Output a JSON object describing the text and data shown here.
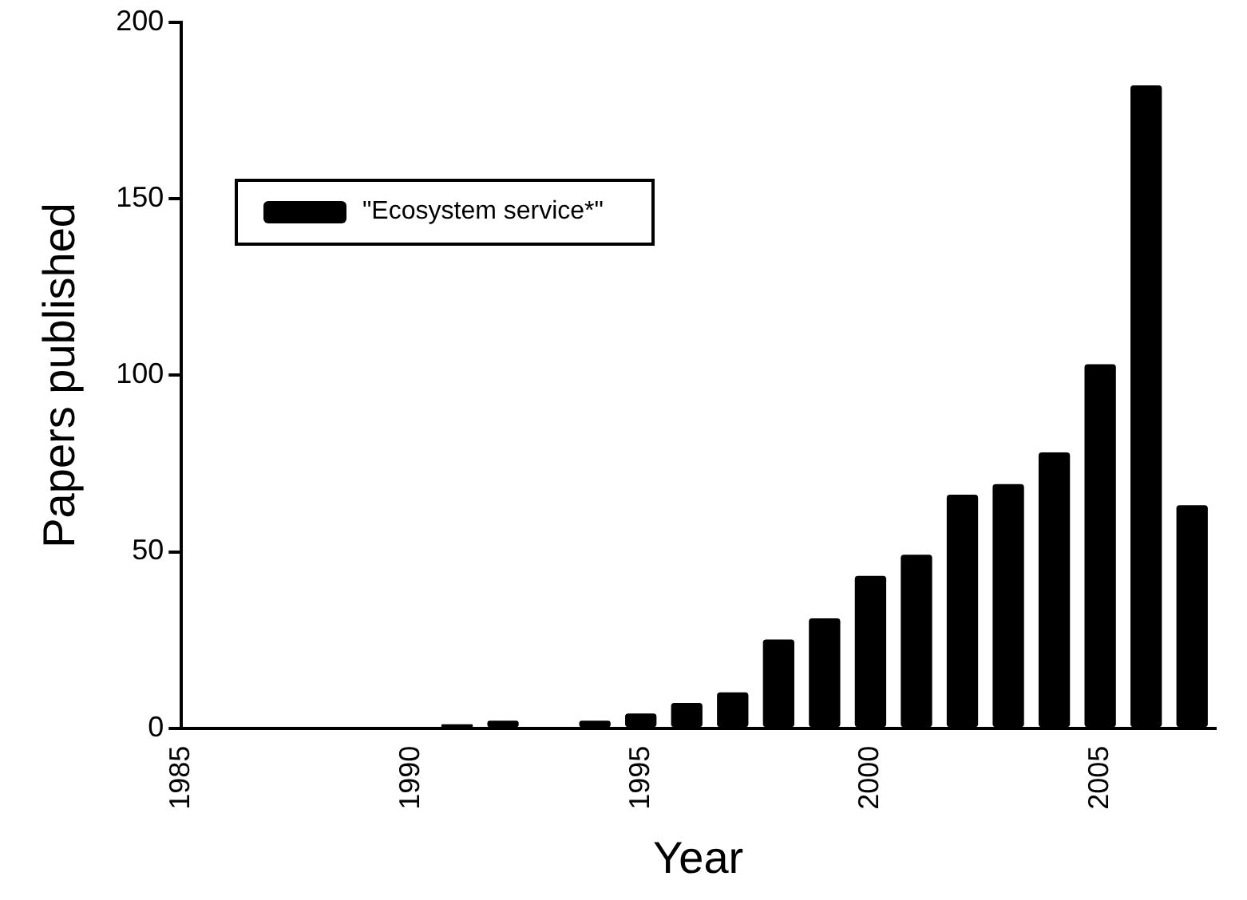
{
  "chart_data": {
    "type": "bar",
    "xlabel": "Year",
    "ylabel": "Papers published",
    "x": [
      1991,
      1992,
      1994,
      1995,
      1996,
      1997,
      1998,
      1999,
      2000,
      2001,
      2002,
      2003,
      2004,
      2005,
      2006,
      2007
    ],
    "series": [
      {
        "name": "\"Ecosystem service*\"",
        "color": "#000000",
        "values": [
          1,
          2,
          2,
          4,
          7,
          10,
          25,
          31,
          43,
          49,
          66,
          69,
          78,
          103,
          182,
          63
        ]
      }
    ],
    "xlim": [
      1985,
      2007.5
    ],
    "xticks": [
      1985,
      1990,
      1995,
      2000,
      2005
    ],
    "ylim": [
      0,
      200
    ],
    "yticks": [
      0,
      50,
      100,
      150,
      200
    ],
    "grid": false,
    "legend": "top left"
  }
}
